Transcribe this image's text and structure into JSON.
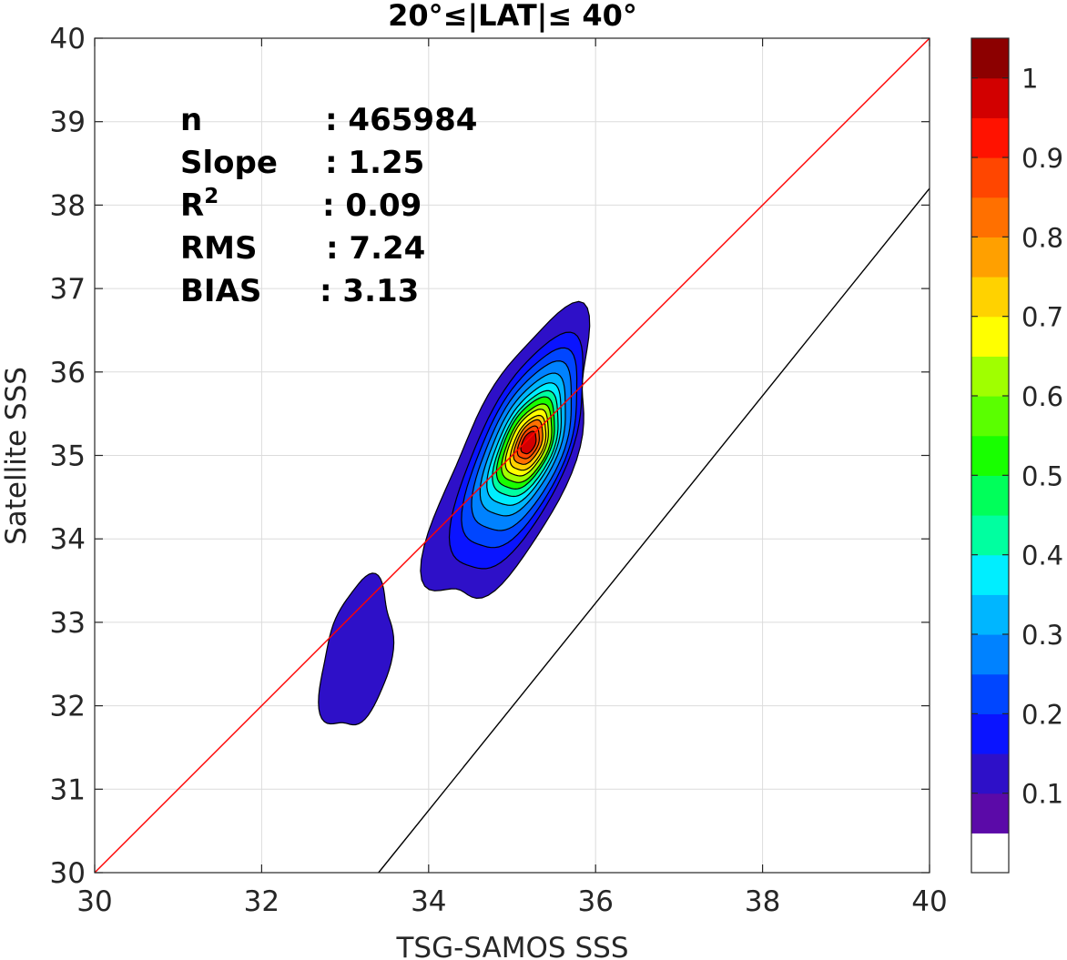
{
  "chart_data": {
    "type": "heatmap",
    "title": "20°≤|LAT|≤ 40°",
    "xlabel": "TSG-SAMOS SSS",
    "ylabel": "Satellite SSS",
    "xlim": [
      30,
      40
    ],
    "ylim": [
      30,
      40
    ],
    "xticks": [
      "30",
      "32",
      "34",
      "36",
      "38",
      "40"
    ],
    "yticks": [
      "30",
      "31",
      "32",
      "33",
      "34",
      "35",
      "36",
      "37",
      "38",
      "39",
      "40"
    ],
    "grid": true,
    "stats": [
      {
        "key": "n",
        "value": ": 465984"
      },
      {
        "key": "Slope",
        "value": ": 1.25"
      },
      {
        "key": "R",
        "sup": "2",
        "value": ": 0.09"
      },
      {
        "key": "RMS",
        "value": ": 7.24"
      },
      {
        "key": "BIAS",
        "value": ": 3.13"
      }
    ],
    "reference_lines": [
      {
        "color": "#ff0000",
        "x": [
          30,
          40
        ],
        "y": [
          30,
          40
        ]
      },
      {
        "color": "#000000",
        "x": [
          33.4,
          40
        ],
        "y": [
          30,
          38.2
        ]
      }
    ],
    "density_peak": {
      "x": 35.2,
      "y": 35.15,
      "value": 1
    },
    "secondary_cluster": {
      "x": 33.1,
      "y": 32.6,
      "value": 0.1
    },
    "colorbar": {
      "ticks": [
        "0.1",
        "0.2",
        "0.3",
        "0.4",
        "0.5",
        "0.6",
        "0.7",
        "0.8",
        "0.9",
        "1"
      ],
      "levels": [
        0.05,
        0.1,
        0.15,
        0.2,
        0.25,
        0.3,
        0.35,
        0.4,
        0.45,
        0.5,
        0.55,
        0.6,
        0.65,
        0.7,
        0.75,
        0.8,
        0.85,
        0.9,
        0.95,
        1.0
      ],
      "colors": [
        "#ffffff",
        "#5b0aa8",
        "#2e10c8",
        "#0a14ff",
        "#0046ff",
        "#0082ff",
        "#00b6ff",
        "#00eeff",
        "#00ffa0",
        "#00ff5a",
        "#18ff00",
        "#5aff00",
        "#a0ff00",
        "#ffff00",
        "#ffd200",
        "#ffa000",
        "#ff7000",
        "#ff4600",
        "#ff1200",
        "#d20000",
        "#8c0000"
      ]
    }
  }
}
